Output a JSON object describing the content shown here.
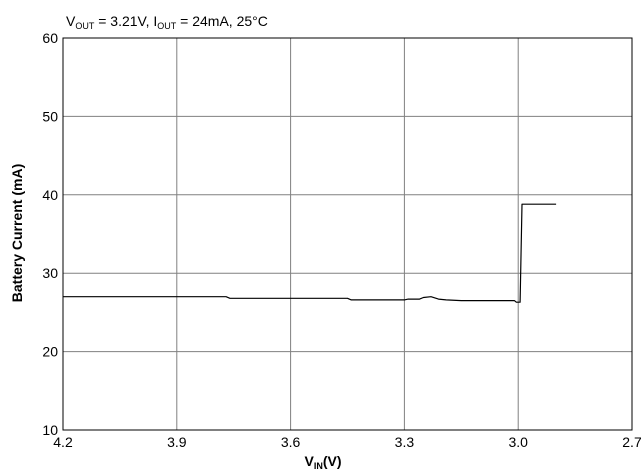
{
  "chart_data": {
    "type": "line",
    "annotation": {
      "v_main": "V",
      "v_sub": "OUT",
      "v_rest": " = 3.21V, I",
      "i_sub": "OUT",
      "i_rest": " = 24mA, 25°C"
    },
    "xlabel": {
      "main": "V",
      "sub": "IN",
      "rest": "(V)"
    },
    "ylabel": "Battery Current (mA)",
    "xlim": [
      4.2,
      2.7
    ],
    "ylim": [
      10,
      60
    ],
    "x_reversed": true,
    "grid": true,
    "x_ticks": [
      {
        "value": 4.2,
        "label": "4.2"
      },
      {
        "value": 3.9,
        "label": "3.9"
      },
      {
        "value": 3.6,
        "label": "3.6"
      },
      {
        "value": 3.3,
        "label": "3.3"
      },
      {
        "value": 3.0,
        "label": "3.0"
      },
      {
        "value": 2.7,
        "label": "2.7"
      }
    ],
    "y_ticks": [
      {
        "value": 10,
        "label": "10"
      },
      {
        "value": 20,
        "label": "20"
      },
      {
        "value": 30,
        "label": "30"
      },
      {
        "value": 40,
        "label": "40"
      },
      {
        "value": 50,
        "label": "50"
      },
      {
        "value": 60,
        "label": "60"
      }
    ],
    "series": [
      {
        "color": "#000000",
        "x": [
          4.2,
          3.9,
          3.77,
          3.76,
          3.6,
          3.45,
          3.44,
          3.3,
          3.29,
          3.26,
          3.25,
          3.23,
          3.21,
          3.19,
          3.15,
          3.1,
          3.05,
          3.01,
          3.005,
          2.995,
          2.99,
          2.9
        ],
        "y": [
          27.0,
          27.0,
          27.0,
          26.8,
          26.8,
          26.8,
          26.6,
          26.6,
          26.7,
          26.7,
          26.9,
          27.0,
          26.7,
          26.6,
          26.5,
          26.5,
          26.5,
          26.5,
          26.3,
          26.3,
          38.8,
          38.8
        ]
      }
    ]
  }
}
